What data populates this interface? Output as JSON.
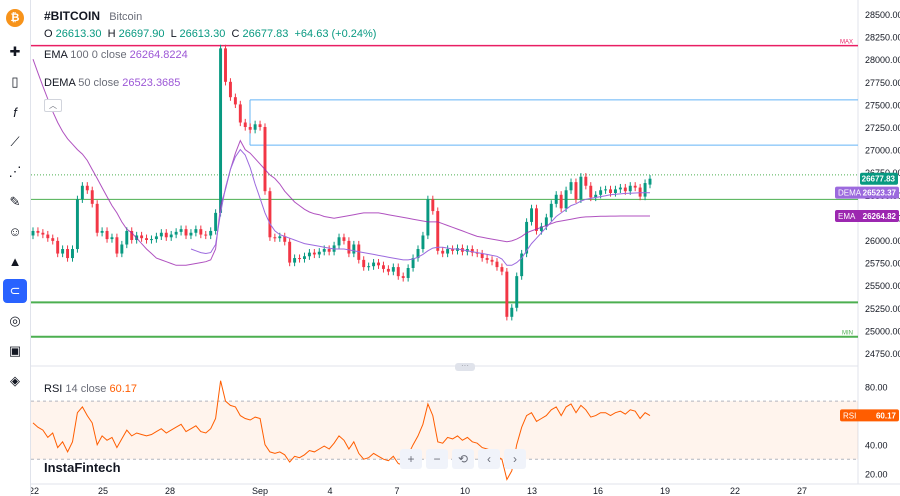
{
  "header": {
    "symbol": "#BITCOIN",
    "name": "Bitcoin",
    "ohlc": {
      "o_label": "O",
      "o": "26613.30",
      "h_label": "H",
      "h": "26697.90",
      "l_label": "L",
      "l": "26613.30",
      "c_label": "C",
      "c": "26677.83",
      "change": "+64.63 (+0.24%)"
    }
  },
  "indicators": {
    "ema": {
      "name": "EMA",
      "params": "100 0 close",
      "value": "26264.8224"
    },
    "dema": {
      "name": "DEMA",
      "params": "50 close",
      "value": "26523.3685"
    },
    "rsi": {
      "name": "RSI",
      "params": "14 close",
      "value": "60.17"
    }
  },
  "watermark": "InstaFintech",
  "toolbar": {
    "icons": [
      "bitcoin-logo-icon",
      "cursor-icon",
      "candles-icon",
      "fx-icon",
      "trend-line-icon",
      "pattern-icon",
      "brush-icon",
      "emoji-icon",
      "measure-icon",
      "magnet-icon",
      "eye-crossed-icon",
      "lock-icon",
      "layers-icon"
    ]
  },
  "navigation": [
    "+",
    "−",
    "⟲",
    "‹",
    "›"
  ],
  "colors": {
    "up": "#089981",
    "down": "#f23645",
    "ema": "#9c27b0",
    "dema": "#9c6ade",
    "rsi": "#ff5d00",
    "support": "#4caf50",
    "max": "#e91e63",
    "blue_level": "#64b5f6"
  },
  "chart_data": [
    {
      "type": "candlestick",
      "title": "#BITCOIN",
      "x_ticks": [
        "22",
        "25",
        "28",
        "Sep",
        "4",
        "7",
        "10",
        "13",
        "16",
        "19",
        "22",
        "27"
      ],
      "y_ticks": [
        24750,
        25000,
        25250,
        25500,
        25750,
        26000,
        26250,
        26500,
        26750,
        27000,
        27250,
        27500,
        27750,
        28000,
        28250,
        28500
      ],
      "ylim": [
        24650,
        28600
      ],
      "price_badges": [
        {
          "label": "",
          "value": "26677.83",
          "color": "#089981"
        },
        {
          "label": "DEMA",
          "value": "26523.37",
          "color": "#9c6ade"
        },
        {
          "label": "EMA",
          "value": "26264.82",
          "color": "#9c27b0"
        }
      ],
      "level_markers": {
        "max": "MAX",
        "min": "MIN"
      },
      "horizontal_levels": [
        {
          "value": 28150,
          "color": "#e91e63",
          "kind": "max"
        },
        {
          "value": 27550,
          "color": "#64b5f6",
          "kind": "resistance",
          "x_start": 0.205
        },
        {
          "value": 27050,
          "color": "#64b5f6",
          "kind": "resistance",
          "x_start": 0.205
        },
        {
          "value": 26720,
          "color": "#4caf50",
          "kind": "dotted"
        },
        {
          "value": 26450,
          "color": "#4caf50",
          "kind": "support"
        },
        {
          "value": 25310,
          "color": "#4caf50",
          "kind": "support-strong"
        },
        {
          "value": 24930,
          "color": "#4caf50",
          "kind": "min"
        }
      ],
      "candles_close": [
        26100,
        26080,
        26060,
        26020,
        25990,
        25850,
        25900,
        25800,
        25900,
        26450,
        26600,
        26550,
        26400,
        26080,
        26100,
        26010,
        26030,
        25850,
        25950,
        26100,
        26000,
        26050,
        26020,
        26000,
        26010,
        26040,
        26080,
        26030,
        26060,
        26090,
        26120,
        26050,
        26080,
        26120,
        26060,
        26050,
        26100,
        26300,
        28120,
        27750,
        27580,
        27500,
        27300,
        27250,
        27220,
        27280,
        27250,
        26540,
        26030,
        26020,
        26040,
        25980,
        25750,
        25800,
        25790,
        25820,
        25860,
        25840,
        25870,
        25900,
        25870,
        25940,
        26030,
        25990,
        25850,
        25950,
        25780,
        25700,
        25710,
        25750,
        25720,
        25680,
        25650,
        25700,
        25600,
        25580,
        25690,
        25800,
        25900,
        26050,
        26450,
        26320,
        25880,
        25850,
        25900,
        25880,
        25910,
        25870,
        25900,
        25860,
        25850,
        25800,
        25780,
        25760,
        25700,
        25650,
        25150,
        25250,
        25600,
        25850,
        26200,
        26350,
        26100,
        26150,
        26250,
        26400,
        26500,
        26350,
        26550,
        26640,
        26450,
        26700,
        26600,
        26470,
        26500,
        26550,
        26560,
        26520,
        26560,
        26580,
        26540,
        26600,
        26580,
        26480,
        26630,
        26678
      ],
      "candles_open": [
        26050,
        26100,
        26080,
        26060,
        26020,
        25990,
        25850,
        25900,
        25800,
        25900,
        26450,
        26600,
        26550,
        26400,
        26080,
        26100,
        26010,
        26030,
        25850,
        25950,
        26100,
        26000,
        26050,
        26020,
        26000,
        26010,
        26040,
        26080,
        26030,
        26060,
        26090,
        26120,
        26050,
        26080,
        26120,
        26060,
        26050,
        26100,
        26300,
        28120,
        27750,
        27580,
        27500,
        27300,
        27250,
        27220,
        27280,
        27250,
        26540,
        26030,
        26020,
        26040,
        25980,
        25750,
        25800,
        25790,
        25820,
        25860,
        25840,
        25870,
        25900,
        25870,
        25940,
        26030,
        25990,
        25850,
        25950,
        25780,
        25700,
        25710,
        25750,
        25720,
        25680,
        25650,
        25700,
        25600,
        25580,
        25690,
        25800,
        25900,
        26050,
        26450,
        26320,
        25880,
        25850,
        25900,
        25880,
        25910,
        25870,
        25900,
        25860,
        25850,
        25800,
        25780,
        25760,
        25700,
        25650,
        25150,
        25250,
        25600,
        25850,
        26200,
        26350,
        26100,
        26150,
        26250,
        26400,
        26500,
        26350,
        26550,
        26640,
        26450,
        26700,
        26600,
        26470,
        26500,
        26550,
        26560,
        26520,
        26560,
        26580,
        26540,
        26600,
        26580,
        26480,
        26613
      ],
      "ema_curve": [
        28000,
        27850,
        27700,
        27560,
        27420,
        27300,
        27200,
        27120,
        27060,
        27000,
        26950,
        26880,
        26780,
        26680,
        26580,
        26480,
        26380,
        26300,
        26200,
        26120,
        26080,
        26020,
        25960,
        25900,
        25850,
        25800,
        25780,
        25760,
        25740,
        25720,
        25720,
        25720,
        25730,
        25740,
        25750,
        25760,
        25780,
        25900,
        26380,
        26560,
        26780,
        26960,
        27100,
        27000,
        26960,
        26900,
        26840,
        26780,
        26720,
        26680,
        26620,
        26540,
        26480,
        26420,
        26380,
        26340,
        26310,
        26290,
        26280,
        26260,
        26250,
        26240,
        26250,
        26260,
        26270,
        26280,
        26290,
        26300,
        26300,
        26300,
        26300,
        26290,
        26280,
        26270,
        26260,
        26250,
        26240,
        26230,
        26220,
        26210,
        26200,
        26200,
        26200,
        26180,
        26160,
        26140,
        26120,
        26100,
        26080,
        26060,
        26040,
        26030,
        26020,
        26010,
        26000,
        25990,
        25980,
        25990,
        26010,
        26040,
        26080,
        26100,
        26120,
        26140,
        26160,
        26180,
        26200,
        26210,
        26220,
        26230,
        26240,
        26250,
        26255,
        26258,
        26260,
        26262,
        26263,
        26264,
        26264,
        26265,
        26265,
        26265,
        26265,
        26265,
        26265,
        26265
      ],
      "dema_curve": [
        null,
        null,
        null,
        null,
        null,
        null,
        null,
        null,
        null,
        null,
        null,
        null,
        null,
        null,
        null,
        null,
        null,
        null,
        null,
        null,
        null,
        null,
        null,
        null,
        null,
        null,
        null,
        null,
        null,
        null,
        null,
        null,
        25900,
        25880,
        25860,
        25850,
        25860,
        25950,
        26300,
        26580,
        26780,
        26920,
        27000,
        26940,
        26800,
        26620,
        26460,
        26300,
        26180,
        26100,
        26060,
        26040,
        26020,
        26000,
        25980,
        25960,
        25950,
        25940,
        25930,
        25920,
        25910,
        25900,
        25900,
        25900,
        25890,
        25880,
        25870,
        25860,
        25850,
        25840,
        25830,
        25820,
        25810,
        25800,
        25790,
        25780,
        25780,
        25790,
        25810,
        25840,
        25880,
        25910,
        25920,
        25920,
        25910,
        25900,
        25900,
        25890,
        25880,
        25870,
        25860,
        25850,
        25840,
        25830,
        25820,
        25790,
        25720,
        25720,
        25750,
        25800,
        25880,
        25960,
        26020,
        26080,
        26140,
        26200,
        26260,
        26300,
        26340,
        26380,
        26400,
        26430,
        26450,
        26460,
        26470,
        26480,
        26490,
        26500,
        26505,
        26510,
        26515,
        26518,
        26520,
        26522,
        26523,
        26523
      ]
    },
    {
      "type": "line",
      "title": "RSI 14 close",
      "y_ticks": [
        20,
        40,
        60,
        80
      ],
      "ylim": [
        15,
        90
      ],
      "bands": [
        30,
        70
      ],
      "badge": {
        "label": "RSI",
        "value": "60.17"
      },
      "values": [
        55,
        52,
        50,
        45,
        48,
        38,
        42,
        35,
        42,
        62,
        66,
        60,
        55,
        40,
        46,
        43,
        45,
        38,
        44,
        50,
        46,
        48,
        47,
        46,
        47,
        49,
        51,
        48,
        50,
        52,
        54,
        49,
        51,
        53,
        49,
        48,
        51,
        58,
        84,
        70,
        67,
        66,
        60,
        58,
        57,
        59,
        58,
        40,
        35,
        34,
        35,
        33,
        28,
        32,
        31,
        33,
        36,
        35,
        37,
        39,
        37,
        41,
        46,
        43,
        37,
        42,
        34,
        30,
        31,
        34,
        32,
        30,
        29,
        32,
        27,
        26,
        33,
        40,
        46,
        54,
        68,
        60,
        42,
        41,
        45,
        44,
        46,
        43,
        45,
        42,
        41,
        38,
        37,
        36,
        32,
        30,
        16,
        22,
        40,
        52,
        60,
        62,
        56,
        58,
        60,
        64,
        66,
        60,
        66,
        68,
        62,
        67,
        64,
        59,
        60,
        62,
        62,
        60,
        62,
        63,
        61,
        64,
        63,
        58,
        62,
        60
      ]
    }
  ]
}
